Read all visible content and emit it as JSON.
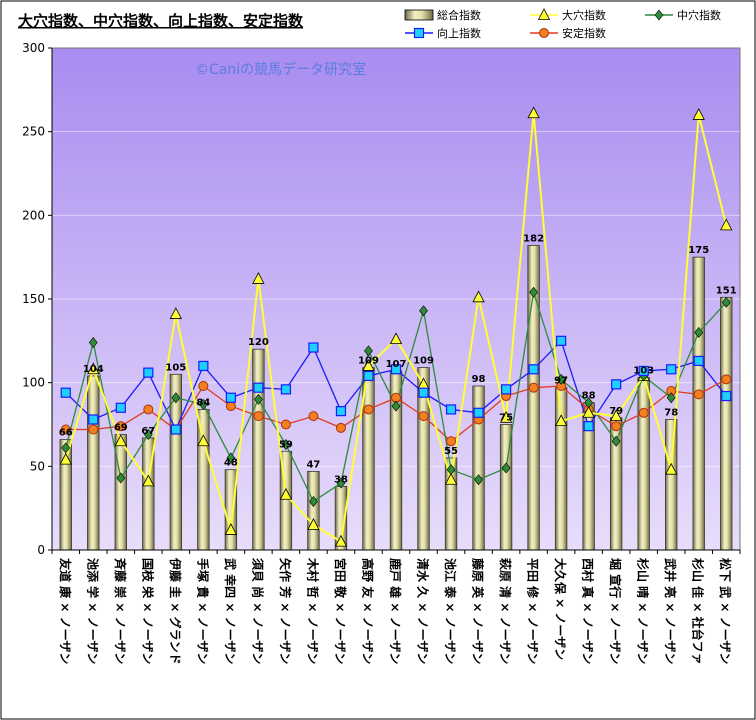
{
  "chart_data": {
    "type": "bar",
    "title": "大穴指数、中穴指数、向上指数、安定指数",
    "watermark": "©Caniの競馬データ研究室",
    "ylim": [
      0,
      300
    ],
    "yticks": [
      "0",
      "50",
      "100",
      "150",
      "200",
      "250",
      "300"
    ],
    "legend_position": "top-right",
    "categories": [
      "友道 康 × ノーザン",
      "池添 学 × ノーザン",
      "斉藤 崇 × ノーザン",
      "国枝 栄 × ノーザン",
      "伊藤 圭 × グランド",
      "手塚 貴 × ノーザン",
      "武 幸四 × ノーザン",
      "須貝 尚 × ノーザン",
      "矢作 芳 × ノーザン",
      "木村 哲 × ノーザン",
      "宮田 敬 × ノーザン",
      "高野 友 × ノーザン",
      "鹿戸 雄 × ノーザン",
      "清水 久 × ノーザン",
      "池江 泰 × ノーザン",
      "藤原 英 × ノーザン",
      "萩原 清 × ノーザン",
      "平田 修 × ノーザン",
      "大久保 × ノーザン",
      "西村 真 × ノーザン",
      "堀 宣行 × ノーザン",
      "杉山 晴 × ノーザン",
      "武井 亮 × ノーザン",
      "杉山 佳 × 社台ファ",
      "松下 武 × ノーザン"
    ],
    "series": [
      {
        "name": "総合指数",
        "kind": "bar",
        "color": "#e6e2a8",
        "values": [
          66,
          104,
          69,
          67,
          105,
          84,
          48,
          120,
          59,
          47,
          38,
          109,
          107,
          109,
          55,
          98,
          75,
          182,
          97,
          88,
          79,
          103,
          78,
          175,
          151
        ],
        "labels": [
          "66",
          "104",
          "69",
          "67",
          "105",
          "84",
          "48",
          "120",
          "59",
          "47",
          "38",
          "109",
          "107",
          "109",
          "55",
          "98",
          "75",
          "182",
          "97",
          "88",
          "79",
          "103",
          "78",
          "175",
          "151"
        ]
      },
      {
        "name": "大穴指数",
        "kind": "line",
        "marker": "triangle",
        "color": "#ffff33",
        "values": [
          54,
          108,
          65,
          41,
          141,
          65,
          12,
          162,
          33,
          15,
          5,
          110,
          126,
          99,
          42,
          151,
          79,
          261,
          77,
          82,
          80,
          104,
          48,
          260,
          194
        ]
      },
      {
        "name": "中穴指数",
        "kind": "line",
        "marker": "diamond",
        "color": "#2e8b3a",
        "values": [
          61,
          124,
          43,
          69,
          91,
          87,
          55,
          90,
          63,
          29,
          40,
          119,
          86,
          143,
          48,
          42,
          49,
          154,
          102,
          88,
          65,
          104,
          91,
          130,
          148
        ]
      },
      {
        "name": "向上指数",
        "kind": "line",
        "marker": "square",
        "color": "#1a1aff",
        "values": [
          94,
          78,
          85,
          106,
          72,
          110,
          91,
          97,
          96,
          121,
          83,
          104,
          108,
          94,
          84,
          82,
          96,
          108,
          125,
          74,
          99,
          107,
          108,
          113,
          92
        ]
      },
      {
        "name": "安定指数",
        "kind": "line",
        "marker": "circle",
        "color": "#e03a1a",
        "values": [
          72,
          72,
          74,
          84,
          72,
          98,
          86,
          80,
          75,
          80,
          73,
          84,
          91,
          80,
          65,
          78,
          92,
          97,
          98,
          84,
          74,
          82,
          95,
          93,
          102
        ]
      }
    ]
  }
}
